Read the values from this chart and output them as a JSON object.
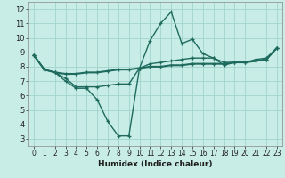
{
  "xlabel": "Humidex (Indice chaleur)",
  "xlim": [
    -0.5,
    23.5
  ],
  "ylim": [
    2.5,
    12.5
  ],
  "yticks": [
    3,
    4,
    5,
    6,
    7,
    8,
    9,
    10,
    11,
    12
  ],
  "xticks": [
    0,
    1,
    2,
    3,
    4,
    5,
    6,
    7,
    8,
    9,
    10,
    11,
    12,
    13,
    14,
    15,
    16,
    17,
    18,
    19,
    20,
    21,
    22,
    23
  ],
  "bg_color": "#c8ece6",
  "grid_color": "#a0d4cc",
  "line_color": "#1e6b5e",
  "series": [
    {
      "x": [
        0,
        1,
        2,
        3,
        4,
        5,
        6,
        7,
        8,
        9,
        10,
        11,
        12,
        13,
        14,
        15,
        16,
        17,
        18,
        19,
        20,
        21,
        22,
        23
      ],
      "y": [
        8.8,
        7.8,
        7.6,
        7.0,
        6.5,
        6.5,
        5.7,
        4.2,
        3.2,
        3.2,
        7.9,
        9.8,
        11.0,
        11.8,
        9.6,
        9.9,
        8.9,
        8.6,
        8.1,
        8.3,
        8.3,
        8.5,
        8.6,
        9.3
      ],
      "lw": 1.0
    },
    {
      "x": [
        0,
        1,
        2,
        3,
        4,
        5,
        6,
        7,
        8,
        9,
        10,
        11,
        12,
        13,
        14,
        15,
        16,
        17,
        18,
        19,
        20,
        21,
        22,
        23
      ],
      "y": [
        8.8,
        7.8,
        7.6,
        7.5,
        7.5,
        7.6,
        7.6,
        7.7,
        7.8,
        7.8,
        7.9,
        8.0,
        8.0,
        8.1,
        8.1,
        8.2,
        8.2,
        8.2,
        8.2,
        8.3,
        8.3,
        8.4,
        8.5,
        9.3
      ],
      "lw": 1.5
    },
    {
      "x": [
        0,
        1,
        2,
        3,
        4,
        5,
        6,
        7,
        8,
        9,
        10,
        11,
        12,
        13,
        14,
        15,
        16,
        17,
        18,
        19,
        20,
        21,
        22,
        23
      ],
      "y": [
        8.8,
        7.8,
        7.6,
        7.2,
        6.6,
        6.6,
        6.6,
        6.7,
        6.8,
        6.8,
        7.9,
        8.2,
        8.3,
        8.4,
        8.5,
        8.6,
        8.6,
        8.6,
        8.3,
        8.3,
        8.3,
        8.4,
        8.5,
        9.3
      ],
      "lw": 1.0
    }
  ]
}
